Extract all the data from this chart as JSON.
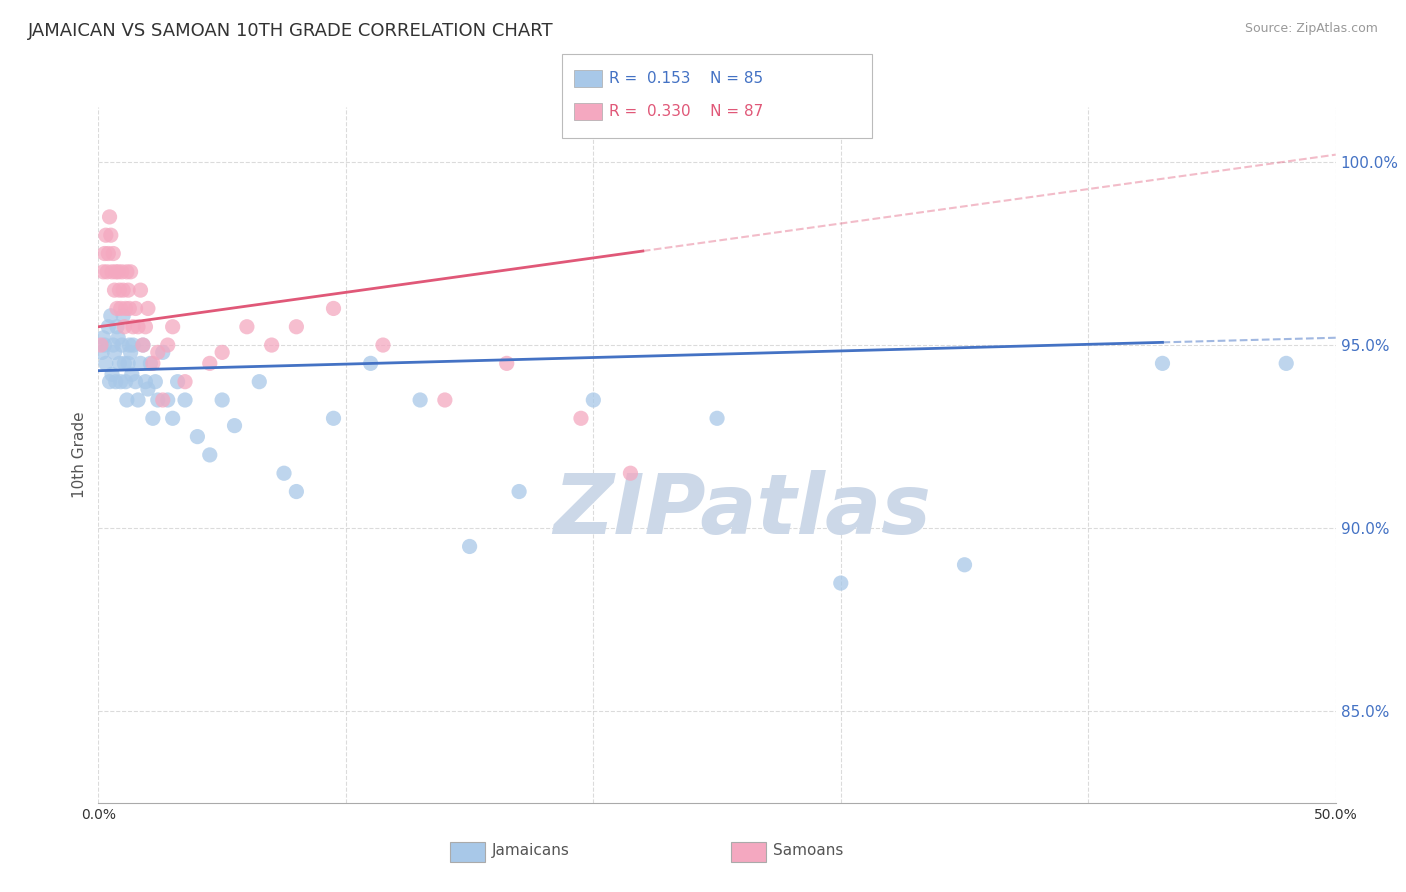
{
  "title": "JAMAICAN VS SAMOAN 10TH GRADE CORRELATION CHART",
  "source_text": "Source: ZipAtlas.com",
  "ylabel": "10th Grade",
  "xlim": [
    0.0,
    50.0
  ],
  "ylim": [
    82.5,
    101.5
  ],
  "x_ticks": [
    0.0,
    10.0,
    20.0,
    30.0,
    40.0,
    50.0
  ],
  "y_ticks": [
    85.0,
    90.0,
    95.0,
    100.0
  ],
  "legend_entries": [
    {
      "label": "Jamaicans",
      "color": "#a8c8e8",
      "R": 0.153,
      "N": 85,
      "line_color": "#4472c4"
    },
    {
      "label": "Samoans",
      "color": "#f4a8c0",
      "R": 0.33,
      "N": 87,
      "line_color": "#e05878"
    }
  ],
  "blue_scatter_x": [
    0.15,
    0.2,
    0.25,
    0.3,
    0.4,
    0.45,
    0.5,
    0.55,
    0.6,
    0.65,
    0.7,
    0.75,
    0.8,
    0.85,
    0.9,
    0.95,
    1.0,
    1.05,
    1.1,
    1.15,
    1.2,
    1.25,
    1.3,
    1.35,
    1.4,
    1.5,
    1.6,
    1.7,
    1.8,
    1.9,
    2.0,
    2.1,
    2.2,
    2.3,
    2.4,
    2.6,
    2.8,
    3.0,
    3.2,
    3.5,
    4.0,
    4.5,
    5.0,
    5.5,
    6.5,
    7.5,
    8.0,
    9.5,
    11.0,
    13.0,
    15.0,
    17.0,
    20.0,
    25.0,
    30.0,
    35.0,
    43.0,
    48.0
  ],
  "blue_scatter_y": [
    94.8,
    95.2,
    95.0,
    94.5,
    95.5,
    94.0,
    95.8,
    94.2,
    95.0,
    94.8,
    94.0,
    95.5,
    95.2,
    94.5,
    94.0,
    95.0,
    95.8,
    94.5,
    94.0,
    93.5,
    94.5,
    95.0,
    94.8,
    94.2,
    95.0,
    94.0,
    93.5,
    94.5,
    95.0,
    94.0,
    93.8,
    94.5,
    93.0,
    94.0,
    93.5,
    94.8,
    93.5,
    93.0,
    94.0,
    93.5,
    92.5,
    92.0,
    93.5,
    92.8,
    94.0,
    91.5,
    91.0,
    93.0,
    94.5,
    93.5,
    89.5,
    91.0,
    93.5,
    93.0,
    88.5,
    89.0,
    94.5,
    94.5
  ],
  "pink_scatter_x": [
    0.1,
    0.2,
    0.25,
    0.3,
    0.35,
    0.4,
    0.45,
    0.5,
    0.55,
    0.6,
    0.65,
    0.7,
    0.75,
    0.8,
    0.85,
    0.9,
    0.95,
    1.0,
    1.05,
    1.1,
    1.15,
    1.2,
    1.25,
    1.3,
    1.4,
    1.5,
    1.6,
    1.7,
    1.8,
    1.9,
    2.0,
    2.2,
    2.4,
    2.6,
    2.8,
    3.0,
    3.5,
    4.5,
    5.0,
    6.0,
    7.0,
    8.0,
    9.5,
    11.5,
    14.0,
    16.5,
    19.5,
    21.5
  ],
  "pink_scatter_y": [
    95.0,
    97.0,
    97.5,
    98.0,
    97.0,
    97.5,
    98.5,
    98.0,
    97.0,
    97.5,
    96.5,
    97.0,
    96.0,
    97.0,
    96.5,
    96.0,
    97.0,
    96.5,
    95.5,
    96.0,
    97.0,
    96.5,
    96.0,
    97.0,
    95.5,
    96.0,
    95.5,
    96.5,
    95.0,
    95.5,
    96.0,
    94.5,
    94.8,
    93.5,
    95.0,
    95.5,
    94.0,
    94.5,
    94.8,
    95.5,
    95.0,
    95.5,
    96.0,
    95.0,
    93.5,
    94.5,
    93.0,
    91.5
  ],
  "blue_line": {
    "x0": 0.0,
    "y0": 94.3,
    "x1": 50.0,
    "y1": 95.2
  },
  "pink_line": {
    "x0": 0.0,
    "y0": 95.5,
    "x1": 50.0,
    "y1": 100.2
  },
  "pink_line_end_solid": 22.0,
  "blue_line_end_solid": 43.0,
  "scatter_size": 120,
  "blue_color": "#a8c8e8",
  "pink_color": "#f4a8c0",
  "blue_line_color": "#4472c4",
  "pink_line_color": "#e05878",
  "background_color": "#ffffff",
  "grid_color": "#cccccc",
  "title_fontsize": 13,
  "axis_label_fontsize": 11,
  "tick_fontsize": 10,
  "right_tick_color": "#4472c4",
  "watermark_color": "#ccd8e8"
}
